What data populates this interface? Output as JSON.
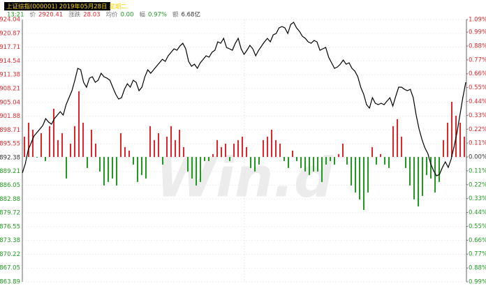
{
  "header": {
    "title": "上证综指(000001) 2019年05月28日 星期二",
    "time": "13:21",
    "fields": [
      {
        "label": "价",
        "value": "2920.41"
      },
      {
        "label": "涨跌",
        "value": "28.03"
      },
      {
        "label": "均价",
        "value": "0.00"
      },
      {
        "label": "幅",
        "value": "0.97%"
      },
      {
        "label": "额",
        "value": "6.68亿"
      }
    ]
  },
  "watermark": "Win.d",
  "chart_data": {
    "type": "line",
    "ylim": [
      2863.89,
      2924.04
    ],
    "yticks": [
      2924.04,
      2920.87,
      2917.71,
      2914.54,
      2911.38,
      2908.21,
      2905.04,
      2901.88,
      2898.71,
      2895.55,
      2892.38,
      2889.21,
      2886.05,
      2882.88,
      2879.72,
      2876.55,
      2873.38,
      2870.22,
      2867.05,
      2863.89
    ],
    "y2lim": [
      -0.99,
      1.09
    ],
    "y2ticks": [
      {
        "value": 1.09,
        "label": "1.09%"
      },
      {
        "value": 0.99,
        "label": "0.99%"
      },
      {
        "value": 0.88,
        "label": "0.88%"
      },
      {
        "value": 0.77,
        "label": "0.77%"
      },
      {
        "value": 0.66,
        "label": "0.66%"
      },
      {
        "value": 0.55,
        "label": "0.55%"
      },
      {
        "value": 0.44,
        "label": "0.44%"
      },
      {
        "value": 0.33,
        "label": "0.33%"
      },
      {
        "value": 0.22,
        "label": "0.22%"
      },
      {
        "value": 0.11,
        "label": "0.11%"
      },
      {
        "value": 0,
        "label": "0.00%"
      },
      {
        "value": -0.11,
        "label": "0.11%"
      },
      {
        "value": -0.22,
        "label": "0.22%"
      },
      {
        "value": -0.33,
        "label": "0.33%"
      },
      {
        "value": -0.44,
        "label": "0.44%"
      },
      {
        "value": -0.55,
        "label": "0.55%"
      },
      {
        "value": -0.66,
        "label": "0.66%"
      },
      {
        "value": -0.77,
        "label": "0.77%"
      },
      {
        "value": -0.88,
        "label": "0.88%"
      },
      {
        "value": -0.99,
        "label": "0.99%"
      }
    ],
    "grid": true,
    "up_color": "#e0262b",
    "down_color": "#1f9a1f",
    "series": [
      {
        "type": "bar",
        "values": [
          2897.18,
          2900.38,
          2898.78,
          2892.38,
          2897.98,
          2891.58,
          2899.58,
          2903.58,
          2896.38,
          2897.98,
          2887.58,
          2895.58,
          2899.58,
          2907.58,
          2900.38,
          2889.98,
          2898.78,
          2895.58,
          2889.18,
          2885.98,
          2886.78,
          2887.58,
          2885.98,
          2897.98,
          2894.78,
          2893.98,
          2890.78,
          2886.78,
          2888.38,
          2887.58,
          2899.58,
          2896.38,
          2897.98,
          2890.78,
          2897.18,
          2899.58,
          2896.38,
          2898.78,
          2894.78,
          2889.18,
          2887.58,
          2885.98,
          2886.78,
          2891.58,
          2891.58,
          2893.18,
          2896.38,
          2894.78,
          2895.58,
          2891.58,
          2895.58,
          2896.38,
          2897.18,
          2894.78,
          2889.98,
          2889.18,
          2890.78,
          2896.38,
          2897.18,
          2898.78,
          2896.38,
          2895.58,
          2891.58,
          2889.98,
          2893.98,
          2891.58,
          2889.98,
          2889.18,
          2888.38,
          2889.18,
          2889.18,
          2886.78,
          2890.78,
          2891.58,
          2890.78,
          2893.18,
          2895.58,
          2890.78,
          2885.98,
          2884.38,
          2882.78,
          2880.38,
          2884.38,
          2894.78,
          2890.78,
          2893.18,
          2890.78,
          2889.98,
          2899.58,
          2901.18,
          2897.18,
          2889.98,
          2885.98,
          2882.78,
          2881.18,
          2883.58,
          2888.38,
          2887.58,
          2884.38,
          2886.78,
          2896.38,
          2900.38,
          2905.18,
          2901.98,
          2900.38,
          2897.18
        ]
      },
      {
        "type": "line",
        "color": "#000000",
        "values": [
          2888.84,
          2890.92,
          2894.12,
          2895.72,
          2897.32,
          2898.12,
          2898.92,
          2899.72,
          2901.32,
          2900.52,
          2900.04,
          2901.32,
          2902.12,
          2902.92,
          2902.12,
          2904.52,
          2906.12,
          2907.72,
          2910.12,
          2912.84,
          2912.52,
          2909.64,
          2908.52,
          2910.6,
          2910.92,
          2909.64,
          2910.12,
          2911.72,
          2910.92,
          2910.6,
          2910.12,
          2908.52,
          2906.92,
          2905.8,
          2906.12,
          2908.04,
          2909.32,
          2908.52,
          2910.12,
          2909.64,
          2907.72,
          2908.52,
          2910.92,
          2912.52,
          2911.72,
          2912.52,
          2913.32,
          2914.12,
          2914.92,
          2914.44,
          2915.72,
          2916.52,
          2917.32,
          2917.0,
          2917.96,
          2918.6,
          2917.32,
          2914.44,
          2913.32,
          2913.8,
          2912.84,
          2914.12,
          2914.92,
          2915.72,
          2915.4,
          2916.52,
          2917.0,
          2918.92,
          2918.6,
          2919.72,
          2917.64,
          2917.32,
          2917.0,
          2918.6,
          2919.72,
          2917.32,
          2916.04,
          2917.0,
          2918.12,
          2917.32,
          2915.72,
          2917.0,
          2917.96,
          2918.92,
          2919.72,
          2918.92,
          2920.52,
          2920.84,
          2922.12,
          2922.44,
          2922.12,
          2920.84,
          2922.92,
          2923.4,
          2922.12,
          2921.32,
          2920.2,
          2919.72,
          2918.92,
          2918.6,
          2919.24,
          2918.92,
          2917.0,
          2917.32,
          2917.64,
          2915.4,
          2914.12,
          2912.84,
          2913.16,
          2913.8,
          2914.76,
          2913.8,
          2914.12,
          2912.84,
          2912.2,
          2910.92,
          2908.52,
          2906.92,
          2904.52,
          2903.72,
          2906.12,
          2904.84,
          2904.52,
          2904.84,
          2904.52,
          2905.32,
          2906.12,
          2904.2,
          2906.44,
          2908.52,
          2908.52,
          2908.04,
          2907.72,
          2908.04,
          2906.12,
          2902.12,
          2898.92,
          2896.52,
          2894.6,
          2893.32,
          2890.92,
          2889.32,
          2888.2,
          2888.52,
          2890.12,
          2891.4,
          2890.12,
          2892.04,
          2894.92,
          2898.12,
          2902.12,
          2906.12,
          2909.64
        ]
      }
    ]
  }
}
